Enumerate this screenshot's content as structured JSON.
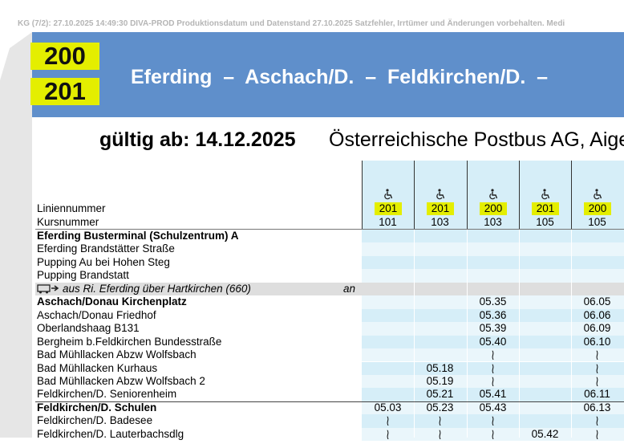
{
  "header_note": "KG (7/2): 27.10.2025 14:49:30 DIVA-PROD Produktionsdatum und Datenstand 27.10.2025 Satzfehler, Irrtümer und Änderungen vorbehalten. Medi",
  "line_numbers": [
    "200",
    "201"
  ],
  "route_title": "Eferding  –  Aschach/D.  –  Feldkirchen/D.  –",
  "valid_from": "gültig ab: 14.12.2025",
  "operator": "Österreichische Postbus AG, Aige",
  "table": {
    "line_label": "Liniennummer",
    "course_label": "Kursnummer",
    "lines": [
      "201",
      "201",
      "200",
      "201",
      "200"
    ],
    "courses": [
      "101",
      "103",
      "103",
      "105",
      "105"
    ],
    "rows": [
      {
        "stop": "Eferding Busterminal (Schulzentrum) A",
        "bold": true,
        "times": [
          null,
          null,
          null,
          null,
          null
        ]
      },
      {
        "stop": "Eferding Brandstätter Straße",
        "times": [
          null,
          null,
          null,
          null,
          null
        ]
      },
      {
        "stop": "Pupping Au bei Hohen Steg",
        "times": [
          null,
          null,
          null,
          null,
          null
        ]
      },
      {
        "stop": "Pupping Brandstatt",
        "times": [
          null,
          null,
          null,
          null,
          null
        ]
      },
      {
        "stop": "aus Ri. Eferding über Hartkirchen (660)",
        "connection": true,
        "note": "an",
        "times": [
          null,
          null,
          null,
          null,
          null
        ]
      },
      {
        "stop": "Aschach/Donau Kirchenplatz",
        "bold": true,
        "times": [
          null,
          null,
          "05.35",
          null,
          "06.05"
        ]
      },
      {
        "stop": "Aschach/Donau Friedhof",
        "times": [
          null,
          null,
          "05.36",
          null,
          "06.06"
        ]
      },
      {
        "stop": "Oberlandshaag B131",
        "times": [
          null,
          null,
          "05.39",
          null,
          "06.09"
        ]
      },
      {
        "stop": "Bergheim b.Feldkirchen Bundesstraße",
        "times": [
          null,
          null,
          "05.40",
          null,
          "06.10"
        ]
      },
      {
        "stop": "Bad Mühllacken Abzw Wolfsbach",
        "times": [
          null,
          null,
          "≀",
          null,
          "≀"
        ]
      },
      {
        "stop": "Bad Mühllacken Kurhaus",
        "times": [
          null,
          "05.18",
          "≀",
          null,
          "≀"
        ]
      },
      {
        "stop": "Bad Mühllacken Abzw Wolfsbach 2",
        "times": [
          null,
          "05.19",
          "≀",
          null,
          "≀"
        ]
      },
      {
        "stop": "Feldkirchen/D. Seniorenheim",
        "times": [
          null,
          "05.21",
          "05.41",
          null,
          "06.11"
        ]
      },
      {
        "stop": "Feldkirchen/D. Schulen",
        "bold": true,
        "times": [
          "05.03",
          "05.23",
          "05.43",
          null,
          "06.13"
        ]
      },
      {
        "stop": "Feldkirchen/D. Badesee",
        "times": [
          "≀",
          "≀",
          "≀",
          null,
          "≀"
        ]
      },
      {
        "stop": "Feldkirchen/D. Lauterbachsdlg",
        "times": [
          "≀",
          "≀",
          "≀",
          "05.42",
          "≀"
        ]
      }
    ]
  }
}
